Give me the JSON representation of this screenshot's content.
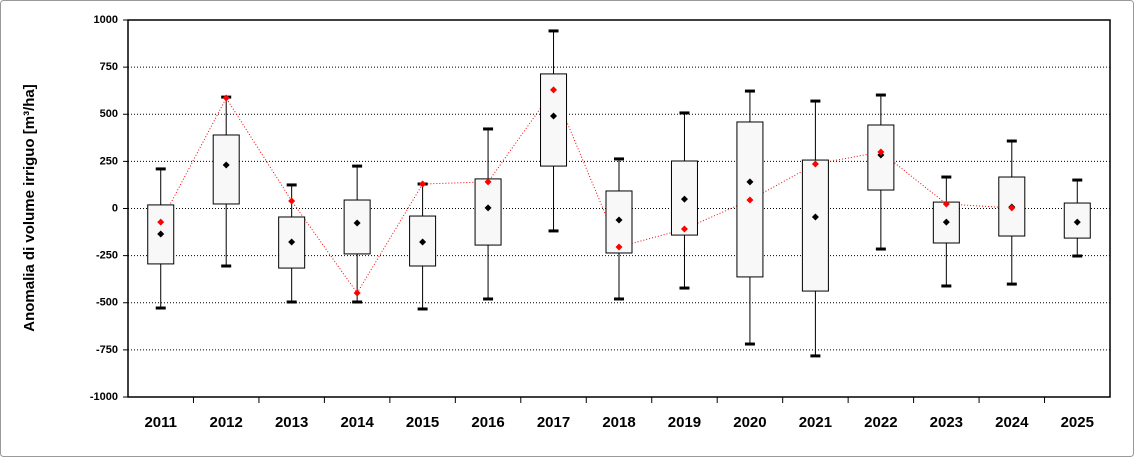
{
  "chart_data": {
    "type": "box",
    "y_label": "Anomalia di volume irriguo [m³/ha]",
    "categories": [
      "2011",
      "2012",
      "2013",
      "2014",
      "2015",
      "2016",
      "2017",
      "2018",
      "2019",
      "2020",
      "2021",
      "2022",
      "2023",
      "2024",
      "2025"
    ],
    "low": [
      -528,
      -305,
      -496,
      -496,
      -533,
      -480,
      -119,
      -480,
      -422,
      -719,
      -782,
      -215,
      -411,
      -401,
      -252
    ],
    "q1": [
      -294,
      24,
      -316,
      -241,
      -305,
      -194,
      225,
      -236,
      -141,
      -363,
      -438,
      98,
      -183,
      -146,
      -157
    ],
    "q3": [
      19,
      390,
      -45,
      45,
      -40,
      157,
      714,
      93,
      252,
      459,
      257,
      443,
      34,
      167,
      29
    ],
    "high": [
      210,
      591,
      125,
      225,
      130,
      422,
      942,
      263,
      507,
      623,
      570,
      602,
      167,
      358,
      151
    ],
    "mean": [
      -135,
      231,
      -178,
      -77,
      -178,
      3,
      491,
      -61,
      50,
      141,
      -45,
      284,
      -72,
      8,
      -72
    ],
    "mean_color": "#000000",
    "current": [
      -72,
      586,
      40,
      -448,
      130,
      141,
      629,
      -204,
      -109,
      45,
      236,
      300,
      24,
      3,
      null
    ],
    "current_color": "#ff0000",
    "ylim": [
      -1000,
      1000
    ],
    "yticks": [
      -1000,
      -750,
      -500,
      -250,
      0,
      250,
      500,
      750,
      1000
    ],
    "grid": true
  }
}
